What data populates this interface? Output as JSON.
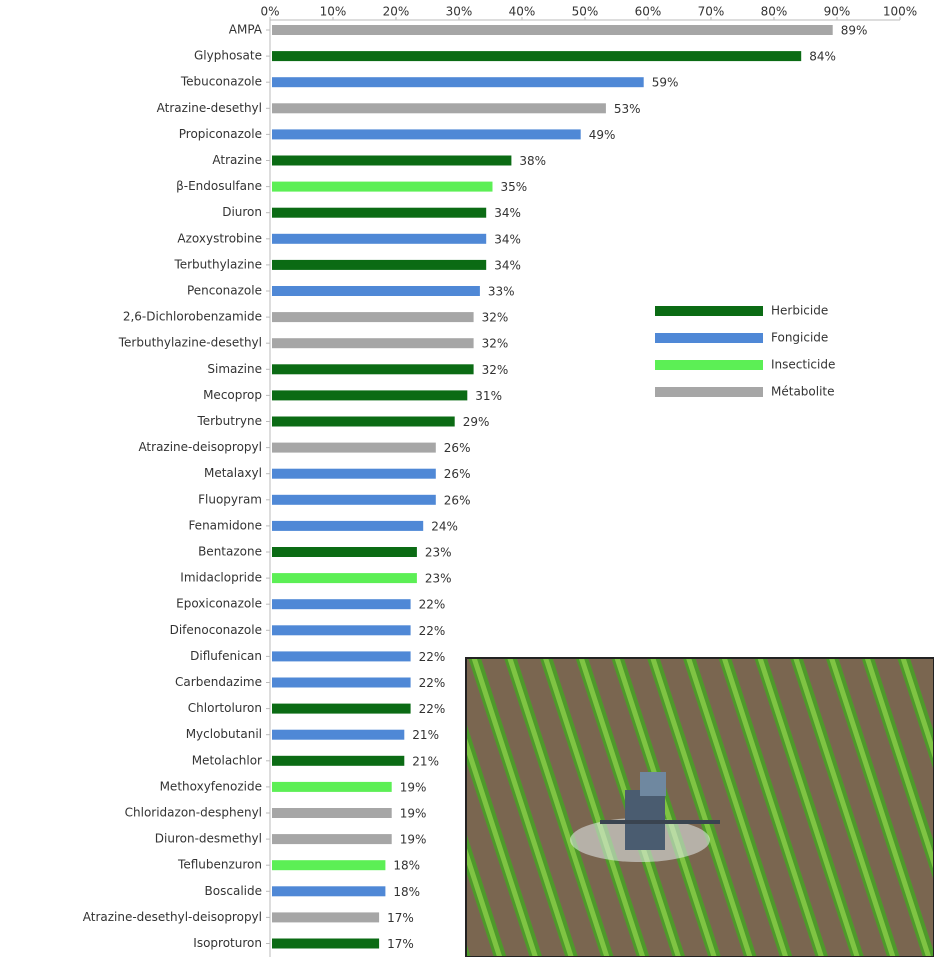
{
  "chart_data": {
    "type": "bar",
    "orientation": "horizontal",
    "categories": [
      "AMPA",
      "Glyphosate",
      "Tebuconazole",
      "Atrazine-desethyl",
      "Propiconazole",
      "Atrazine",
      "β-Endosulfane",
      "Diuron",
      "Azoxystrobine",
      "Terbuthylazine",
      "Penconazole",
      "2,6-Dichlorobenzamide",
      "Terbuthylazine-desethyl",
      "Simazine",
      "Mecoprop",
      "Terbutryne",
      "Atrazine-deisopropyl",
      "Metalaxyl",
      "Fluopyram",
      "Fenamidone",
      "Bentazone",
      "Imidaclopride",
      "Epoxiconazole",
      "Difenoconazole",
      "Diflufenican",
      "Carbendazime",
      "Chlortoluron",
      "Myclobutanil",
      "Metolachlor",
      "Methoxyfenozide",
      "Chloridazon-desphenyl",
      "Diuron-desmethyl",
      "Teflubenzuron",
      "Boscalide",
      "Atrazine-desethyl-deisopropyl",
      "Isoproturon"
    ],
    "series": [
      {
        "name": "Herbicide",
        "color": "#0b6b14",
        "values": [
          null,
          84,
          null,
          null,
          null,
          38,
          null,
          34,
          null,
          34,
          null,
          null,
          null,
          32,
          31,
          29,
          null,
          null,
          null,
          null,
          23,
          null,
          null,
          null,
          null,
          null,
          22,
          null,
          21,
          null,
          null,
          null,
          null,
          null,
          null,
          17
        ],
        "value_labels": [
          null,
          "84%",
          null,
          null,
          null,
          "38%",
          null,
          "34%",
          null,
          "34%",
          null,
          null,
          null,
          "32%",
          "31%",
          "29%",
          null,
          null,
          null,
          null,
          "23%",
          null,
          null,
          null,
          null,
          null,
          "22%",
          null,
          "21%",
          null,
          null,
          null,
          null,
          null,
          null,
          "17%"
        ]
      },
      {
        "name": "Fongicide",
        "color": "#4f88d6",
        "values": [
          null,
          null,
          59,
          null,
          49,
          null,
          null,
          null,
          34,
          null,
          33,
          null,
          null,
          null,
          null,
          null,
          null,
          26,
          26,
          24,
          null,
          null,
          22,
          22,
          22,
          22,
          null,
          21,
          null,
          null,
          null,
          null,
          null,
          18,
          null,
          null
        ],
        "value_labels": [
          null,
          null,
          "59%",
          null,
          "49%",
          null,
          null,
          null,
          "34%",
          null,
          "33%",
          null,
          null,
          null,
          null,
          null,
          null,
          "26%",
          "26%",
          "24%",
          null,
          null,
          "22%",
          "22%",
          "22%",
          "22%",
          null,
          "21%",
          null,
          null,
          null,
          null,
          null,
          "18%",
          null,
          null
        ]
      },
      {
        "name": "Insecticide",
        "color": "#5cef55",
        "values": [
          null,
          null,
          null,
          null,
          null,
          null,
          35,
          null,
          null,
          null,
          null,
          null,
          null,
          null,
          null,
          null,
          null,
          null,
          null,
          null,
          null,
          23,
          null,
          null,
          null,
          null,
          null,
          null,
          null,
          19,
          null,
          null,
          18,
          null,
          null,
          null
        ],
        "value_labels": [
          null,
          null,
          null,
          null,
          null,
          null,
          "35%",
          null,
          null,
          null,
          null,
          null,
          null,
          null,
          null,
          null,
          null,
          null,
          null,
          null,
          null,
          "23%",
          null,
          null,
          null,
          null,
          null,
          null,
          null,
          "19%",
          null,
          null,
          "18%",
          null,
          null,
          null
        ]
      },
      {
        "name": "Métabolite",
        "color": "#a6a6a6",
        "values": [
          89,
          null,
          null,
          53,
          null,
          null,
          null,
          null,
          null,
          null,
          null,
          32,
          32,
          null,
          null,
          null,
          26,
          null,
          null,
          null,
          null,
          null,
          null,
          null,
          null,
          null,
          null,
          null,
          null,
          null,
          19,
          19,
          null,
          null,
          17,
          null
        ],
        "value_labels": [
          "89%",
          null,
          null,
          "53%",
          null,
          null,
          null,
          null,
          null,
          null,
          null,
          "32%",
          "32%",
          null,
          null,
          null,
          "26%",
          null,
          null,
          null,
          null,
          null,
          null,
          null,
          null,
          null,
          null,
          null,
          null,
          null,
          "19%",
          "19%",
          null,
          null,
          "17%",
          null
        ]
      }
    ],
    "xlim": [
      0,
      100
    ],
    "xticks": [
      {
        "value": 0,
        "label": "0%"
      },
      {
        "value": 10,
        "label": "10%"
      },
      {
        "value": 20,
        "label": "20%"
      },
      {
        "value": 30,
        "label": "30%"
      },
      {
        "value": 40,
        "label": "40%"
      },
      {
        "value": 50,
        "label": "50%"
      },
      {
        "value": 60,
        "label": "60%"
      },
      {
        "value": 70,
        "label": "70%"
      },
      {
        "value": 80,
        "label": "80%"
      },
      {
        "value": 90,
        "label": "90%"
      },
      {
        "value": 100,
        "label": "100%"
      }
    ]
  }
}
